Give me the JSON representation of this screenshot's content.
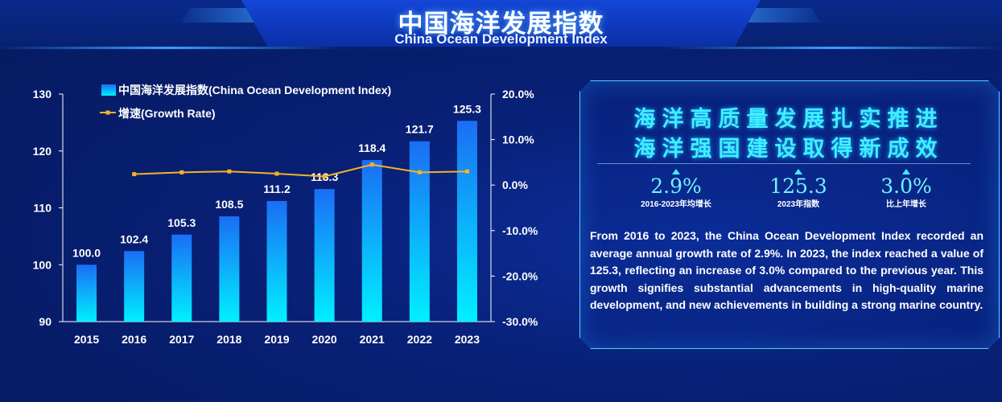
{
  "header": {
    "title_cn": "中国海洋发展指数",
    "title_en": "China Ocean Development Index"
  },
  "chart_data": {
    "type": "bar",
    "categories": [
      "2015",
      "2016",
      "2017",
      "2018",
      "2019",
      "2020",
      "2021",
      "2022",
      "2023"
    ],
    "series": [
      {
        "name": "中国海洋发展指数(China Ocean Development Index)",
        "type": "bar",
        "axis": "left",
        "values": [
          100.0,
          102.4,
          105.3,
          108.5,
          111.2,
          113.3,
          118.4,
          121.7,
          125.3
        ],
        "labels": [
          "100.0",
          "102.4",
          "105.3",
          "108.5",
          "111.2",
          "113.3",
          "118.4",
          "121.7",
          "125.3"
        ]
      },
      {
        "name": "增速(Growth Rate)",
        "type": "line",
        "axis": "right",
        "values": [
          null,
          2.4,
          2.8,
          3.0,
          2.5,
          1.9,
          4.5,
          2.8,
          3.0
        ]
      }
    ],
    "yleft": {
      "min": 90,
      "max": 130,
      "ticks": [
        "90",
        "100",
        "110",
        "120",
        "130"
      ]
    },
    "yright": {
      "min": -30,
      "max": 20,
      "ticks": [
        "-30.0%",
        "-20.0%",
        "-10.0%",
        "0.0%",
        "10.0%",
        "20.0%"
      ]
    },
    "legend": "top-left",
    "colors": {
      "bar_top": "#1a6ef5",
      "bar_bottom": "#00f0ff",
      "line": "#f5b324",
      "axis": "#ffffff"
    }
  },
  "panel": {
    "slogan_line1": "海洋高质量发展扎实推进",
    "slogan_line2": "海洋强国建设取得新成效",
    "stats": [
      {
        "value": "2.9%",
        "label": "2016-2023年均增长"
      },
      {
        "value": "125.3",
        "label": "2023年指数"
      },
      {
        "value": "3.0%",
        "label": "比上年增长"
      }
    ],
    "description": "From 2016 to 2023, the China Ocean Development Index recorded an average annual growth rate of 2.9%. In 2023, the index reached a value of 125.3, reflecting an increase of 3.0% compared to the previous year. This growth signifies substantial advancements in high-quality marine development, and new achievements in building a strong marine country."
  }
}
